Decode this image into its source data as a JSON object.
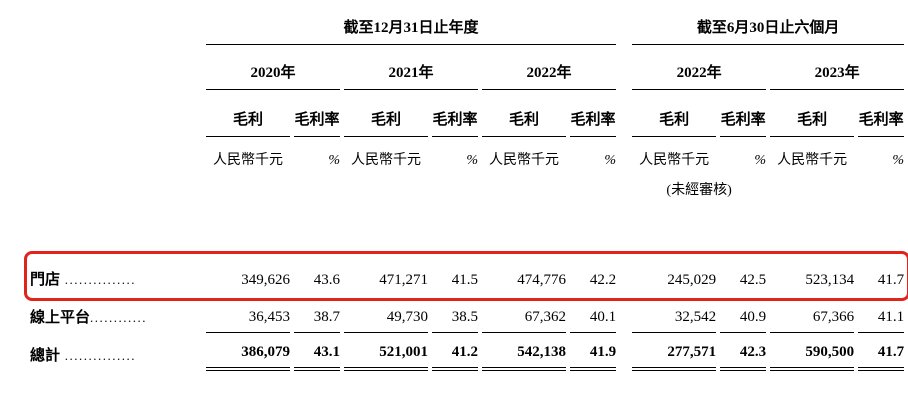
{
  "table": {
    "highlight_color": "#e0241b",
    "groups": [
      {
        "title": "截至12月31日止年度"
      },
      {
        "title": "截至6月30日止六個月"
      }
    ],
    "years": [
      "2020年",
      "2021年",
      "2022年",
      "2022年",
      "2023年"
    ],
    "col_headers": {
      "gp": "毛利",
      "margin": "毛利率"
    },
    "units": {
      "gp": "人民幣千元",
      "margin": "%"
    },
    "unaudited": "(未經審核)",
    "rows": [
      {
        "label": "門店",
        "leader": " ...............",
        "values": [
          "349,626",
          "43.6",
          "471,271",
          "41.5",
          "474,776",
          "42.2",
          "245,029",
          "42.5",
          "523,134",
          "41.7"
        ]
      },
      {
        "label": "線上平台",
        "leader": "............",
        "values": [
          "36,453",
          "38.7",
          "49,730",
          "38.5",
          "67,362",
          "40.1",
          "32,542",
          "40.9",
          "67,366",
          "41.1"
        ]
      },
      {
        "label": "總計",
        "leader": " ...............",
        "values": [
          "386,079",
          "43.1",
          "521,001",
          "41.2",
          "542,138",
          "41.9",
          "277,571",
          "42.3",
          "590,500",
          "41.7"
        ]
      }
    ]
  }
}
